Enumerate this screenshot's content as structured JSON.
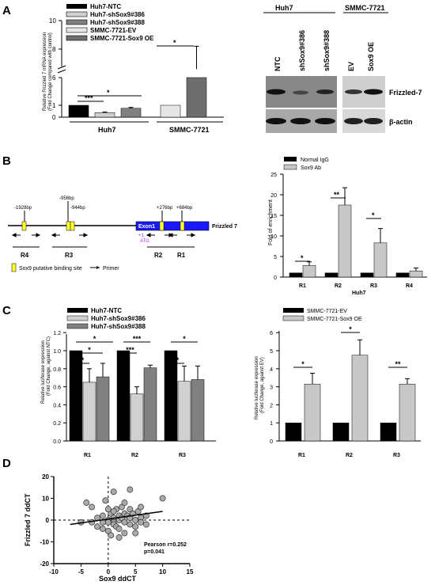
{
  "panel_labels": {
    "a": "A",
    "b": "B",
    "c": "C",
    "d": "D"
  },
  "colors": {
    "ntc": "#000000",
    "sh386": "#d0d0d0",
    "sh388": "#808080",
    "ev": "#e6e6e6",
    "oe": "#6e6e6e",
    "igg": "#000000",
    "sox9ab": "#c8c8c8",
    "exon": "#1a1aff",
    "site": "#ffff33",
    "point": "#aaaaaa",
    "trend": "#000000"
  },
  "panelA": {
    "legend": [
      "Huh7-NTC",
      "Huh7-shSox9#386",
      "Huh7-shSox9#388",
      "SMMC-7721-EV",
      "SMMC-7721-Sox9 OE"
    ],
    "ylabel1": "Relative Frizzled 7 mRNA expression",
    "ylabel2": "(Fold Change compared with control)",
    "yticks_low": [
      "0",
      "1"
    ],
    "yticks_high": [
      "6",
      "8",
      "10"
    ],
    "group1": "Huh7",
    "group2": "SMMC-7721",
    "sig": [
      "***",
      "*",
      "*"
    ],
    "blot": {
      "group1": "Huh7",
      "group2": "SMMC-7721",
      "lanes": [
        "NTC",
        "shSox9#386",
        "shSox9#388",
        "EV",
        "Sox9 OE"
      ],
      "band1": "Frizzled-7",
      "band2": "β-actin"
    }
  },
  "panelB": {
    "gene": "Frizzled 7",
    "exon": "Exon1",
    "positions": [
      "-1928bp",
      "-956bp",
      "-944bp",
      "+276bp",
      "+684bp"
    ],
    "tss": "+1",
    "atg": "ATG",
    "regions": [
      "R4",
      "R3",
      "R2",
      "R1"
    ],
    "key_site": "Sox9 putative binding site",
    "key_primer": "Primer",
    "chart_legend": [
      "Normal IgG",
      "Sox9 Ab"
    ],
    "ylabel": "Fold of enrichment",
    "xlabel": "Huh7",
    "yticks": [
      "0",
      "5",
      "10",
      "15",
      "20",
      "25"
    ],
    "sig": [
      "*",
      "**",
      "*"
    ]
  },
  "panelC": {
    "left_legend": [
      "Huh7-NTC",
      "Huh7-shSox9#386",
      "Huh7-shSox9#388"
    ],
    "right_legend": [
      "SMMC-7721-EV",
      "SMMC-7721-Sox9 OE"
    ],
    "left_ylabel1": "Relative luciferase expression",
    "left_ylabel2": "(Fold Change, against NTC)",
    "right_ylabel1": "Relative luciferase expression",
    "right_ylabel2": "(Fold Change, against EV)",
    "left_yticks": [
      "0.0",
      "0.2",
      "0.4",
      "0.6",
      "0.8",
      "1.0",
      "1.2"
    ],
    "right_yticks": [
      "0",
      "1",
      "2",
      "3",
      "4",
      "5",
      "6"
    ],
    "left_sig": [
      "*",
      "*",
      "*",
      "***",
      "***",
      "*",
      "*"
    ],
    "right_sig": [
      "*",
      "*",
      "**"
    ]
  },
  "panelD": {
    "xlabel": "Sox9 ddCT",
    "ylabel": "Frizzled 7 ddCT",
    "xticks": [
      "-10",
      "-5",
      "0",
      "5",
      "10",
      "15"
    ],
    "yticks": [
      "-20",
      "-10",
      "0",
      "10",
      "20"
    ],
    "stat1": "Pearson r=0.252",
    "stat2": "p=0.041"
  },
  "chart_data": [
    {
      "type": "bar",
      "categories": [
        "Huh7-NTC",
        "Huh7-shSox9#386",
        "Huh7-shSox9#388",
        "SMMC-7721-EV",
        "SMMC-7721-Sox9 OE"
      ],
      "values": [
        1.0,
        0.38,
        0.75,
        1.0,
        6.6
      ],
      "errors": [
        0.0,
        0.05,
        0.07,
        0.0,
        1.6
      ],
      "ylim": [
        0,
        10
      ],
      "ybreak": [
        1.5,
        6
      ],
      "ylabel": "Relative Frizzled 7 mRNA expression (Fold Change compared with control)"
    },
    {
      "type": "bar",
      "categories": [
        "R1",
        "R2",
        "R3",
        "R4"
      ],
      "series": [
        {
          "name": "Normal IgG",
          "values": [
            1,
            1,
            1,
            1
          ],
          "errors": [
            0,
            0,
            0,
            0
          ]
        },
        {
          "name": "Sox9 Ab",
          "values": [
            2.8,
            17.5,
            8.3,
            1.5
          ],
          "errors": [
            0.9,
            4.2,
            3.5,
            0.7
          ]
        }
      ],
      "ylim": [
        0,
        25
      ],
      "ylabel": "Fold of enrichment",
      "xlabel": "Huh7"
    },
    {
      "type": "bar",
      "categories": [
        "R1",
        "R2",
        "R3"
      ],
      "series": [
        {
          "name": "Huh7-NTC",
          "values": [
            1.0,
            1.0,
            1.0
          ],
          "errors": [
            0,
            0,
            0
          ]
        },
        {
          "name": "Huh7-shSox9#386",
          "values": [
            0.65,
            0.52,
            0.66
          ],
          "errors": [
            0.15,
            0.08,
            0.17
          ]
        },
        {
          "name": "Huh7-shSox9#388",
          "values": [
            0.71,
            0.81,
            0.68
          ],
          "errors": [
            0.15,
            0.03,
            0.15
          ]
        }
      ],
      "ylim": [
        0,
        1.2
      ],
      "ylabel": "Relative luciferase expression (Fold Change, against NTC)"
    },
    {
      "type": "bar",
      "categories": [
        "R1",
        "R2",
        "R3"
      ],
      "series": [
        {
          "name": "SMMC-7721-EV",
          "values": [
            1,
            1,
            1
          ],
          "errors": [
            0,
            0,
            0
          ]
        },
        {
          "name": "SMMC-7721-Sox9 OE",
          "values": [
            3.15,
            4.75,
            3.15
          ],
          "errors": [
            0.6,
            0.85,
            0.3
          ]
        }
      ],
      "ylim": [
        0,
        6
      ],
      "ylabel": "Relative luciferase expression (Fold Change, against EV)"
    },
    {
      "type": "scatter",
      "xlabel": "Sox9 ddCT",
      "ylabel": "Frizzled 7 ddCT",
      "xlim": [
        -10,
        15
      ],
      "ylim": [
        -20,
        20
      ],
      "trend": [
        [
          -7,
          -2
        ],
        [
          10,
          4
        ]
      ],
      "points": [
        [
          -4,
          8
        ],
        [
          -3,
          6
        ],
        [
          -2,
          -3
        ],
        [
          -1,
          -4
        ],
        [
          -1,
          2
        ],
        [
          -0.5,
          9
        ],
        [
          0,
          0
        ],
        [
          0,
          -5
        ],
        [
          0.5,
          3
        ],
        [
          0.5,
          -7
        ],
        [
          1,
          1
        ],
        [
          1,
          -1
        ],
        [
          1,
          -2
        ],
        [
          1.5,
          5
        ],
        [
          1.5,
          -3
        ],
        [
          2,
          0
        ],
        [
          2,
          2
        ],
        [
          2,
          -4
        ],
        [
          2.5,
          1
        ],
        [
          2.5,
          6
        ],
        [
          3,
          -1
        ],
        [
          3,
          3
        ],
        [
          3,
          -6
        ],
        [
          3.5,
          2
        ],
        [
          4,
          1
        ],
        [
          4,
          -2
        ],
        [
          4,
          5
        ],
        [
          4.5,
          3
        ],
        [
          5,
          0
        ],
        [
          5,
          -3
        ],
        [
          5.5,
          4
        ],
        [
          6,
          1
        ],
        [
          6,
          -1
        ],
        [
          7,
          2
        ],
        [
          -2,
          1
        ],
        [
          0,
          -1
        ],
        [
          -1,
          -1
        ],
        [
          3,
          8
        ],
        [
          2,
          -8
        ],
        [
          1,
          13
        ],
        [
          4,
          14
        ],
        [
          -3,
          -1
        ],
        [
          5,
          -6
        ],
        [
          6,
          6
        ],
        [
          10,
          10
        ],
        [
          0,
          5
        ],
        [
          1,
          4
        ],
        [
          7,
          -2
        ],
        [
          -5,
          -1
        ]
      ]
    }
  ]
}
